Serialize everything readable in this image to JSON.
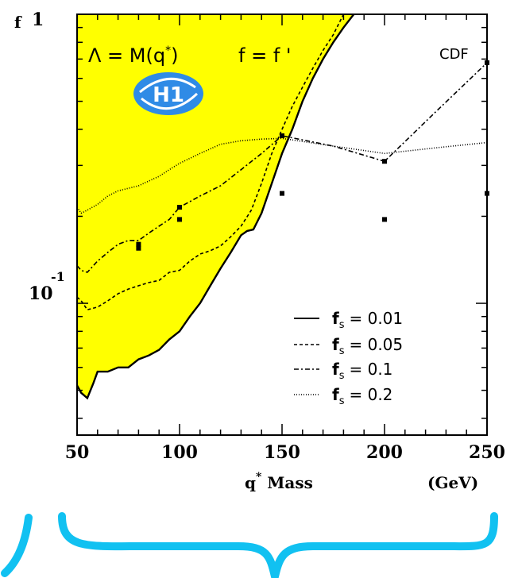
{
  "chart_data": {
    "type": "line",
    "x_axis": {
      "title_main": "q",
      "title_sup": "*",
      "title_rest": " Mass",
      "unit": "(GeV)",
      "range": [
        50,
        250
      ],
      "ticks": [
        50,
        100,
        150,
        200,
        250
      ],
      "tick_labels": [
        "50",
        "100",
        "150",
        "200",
        "250"
      ]
    },
    "y_axis": {
      "title": "f",
      "scale": "log",
      "range": [
        0.035,
        1.0
      ],
      "ticks": [
        {
          "value": 1.0,
          "base": "1",
          "exp": ""
        },
        {
          "value": 0.1,
          "base": "10",
          "exp": "-1"
        }
      ]
    },
    "annotation": {
      "lambda_eq": "Λ = M(q",
      "lambda_sup": "*",
      "lambda_close": ")",
      "f_eq": "f = f '",
      "logo_text": "H1"
    },
    "colors": {
      "excluded_fill": "#ffff00",
      "bracket": "#11c1f1",
      "logo_blue": "#2f8be6"
    },
    "excluded_region": {
      "lower_boundary_x": [
        50,
        52,
        55,
        58,
        60,
        65,
        70,
        75,
        80,
        85,
        90,
        95,
        100,
        105,
        110,
        115,
        120,
        125,
        130,
        133,
        136,
        140,
        145,
        150,
        155,
        160,
        165,
        170,
        175,
        180,
        185
      ],
      "lower_boundary_y": [
        0.052,
        0.049,
        0.047,
        0.053,
        0.058,
        0.058,
        0.06,
        0.06,
        0.064,
        0.066,
        0.069,
        0.075,
        0.08,
        0.09,
        0.1,
        0.115,
        0.132,
        0.15,
        0.172,
        0.178,
        0.18,
        0.205,
        0.26,
        0.33,
        0.4,
        0.5,
        0.6,
        0.7,
        0.8,
        0.9,
        1.0
      ]
    },
    "series": [
      {
        "name": "f_s = 0.01",
        "sub": "s",
        "value": "= 0.01",
        "dash": "",
        "x": [
          50,
          52,
          55,
          58,
          60,
          65,
          70,
          75,
          80,
          85,
          90,
          95,
          100,
          105,
          110,
          115,
          120,
          125,
          130,
          133,
          136,
          140,
          145,
          150,
          155,
          160,
          165,
          170,
          175,
          180,
          185
        ],
        "y": [
          0.052,
          0.049,
          0.047,
          0.053,
          0.058,
          0.058,
          0.06,
          0.06,
          0.064,
          0.066,
          0.069,
          0.075,
          0.08,
          0.09,
          0.1,
          0.115,
          0.132,
          0.15,
          0.172,
          0.178,
          0.18,
          0.205,
          0.26,
          0.33,
          0.4,
          0.5,
          0.6,
          0.7,
          0.8,
          0.9,
          1.0
        ]
      },
      {
        "name": "f_s = 0.05",
        "sub": "s",
        "value": "= 0.05",
        "dash": "4,3",
        "x": [
          50,
          52,
          55,
          60,
          65,
          70,
          75,
          80,
          85,
          90,
          95,
          100,
          105,
          110,
          115,
          120,
          125,
          130,
          135,
          140,
          145,
          150,
          155,
          160,
          165,
          170,
          175,
          180
        ],
        "y": [
          0.105,
          0.102,
          0.095,
          0.097,
          0.102,
          0.108,
          0.112,
          0.115,
          0.118,
          0.12,
          0.128,
          0.13,
          0.14,
          0.148,
          0.152,
          0.158,
          0.17,
          0.185,
          0.21,
          0.26,
          0.33,
          0.4,
          0.48,
          0.56,
          0.65,
          0.75,
          0.85,
          1.0
        ]
      },
      {
        "name": "f_s = 0.1",
        "sub": "s",
        "value": "= 0.1",
        "dash": "6,3,2,3",
        "x": [
          50,
          52,
          55,
          60,
          65,
          70,
          75,
          80,
          85,
          90,
          95,
          100,
          110,
          120,
          130,
          140,
          150,
          175,
          200,
          225,
          250
        ],
        "y": [
          0.135,
          0.13,
          0.128,
          0.14,
          0.15,
          0.16,
          0.165,
          0.165,
          0.175,
          0.185,
          0.195,
          0.215,
          0.235,
          0.255,
          0.29,
          0.33,
          0.38,
          0.35,
          0.31,
          0.46,
          0.68
        ],
        "markers_x": [
          80,
          100,
          150,
          200,
          250
        ],
        "markers_y": [
          0.155,
          0.215,
          0.38,
          0.31,
          0.68
        ]
      },
      {
        "name": "f_s = 0.2",
        "sub": "s",
        "value": "= 0.2",
        "dash": "1,2",
        "x": [
          50,
          52,
          55,
          60,
          65,
          70,
          75,
          80,
          85,
          90,
          95,
          100,
          110,
          120,
          130,
          140,
          150,
          175,
          200,
          225,
          250
        ],
        "y": [
          0.215,
          0.205,
          0.21,
          0.22,
          0.235,
          0.245,
          0.25,
          0.255,
          0.265,
          0.275,
          0.29,
          0.305,
          0.33,
          0.355,
          0.365,
          0.37,
          0.372,
          0.35,
          0.33,
          0.345,
          0.36
        ],
        "markers_x": [
          80,
          100,
          150,
          200,
          250
        ],
        "markers_y": [
          0.16,
          0.195,
          0.24,
          0.195,
          0.24
        ]
      }
    ],
    "cdf_label": "CDF",
    "legend": {
      "position": "bottom-right"
    }
  }
}
